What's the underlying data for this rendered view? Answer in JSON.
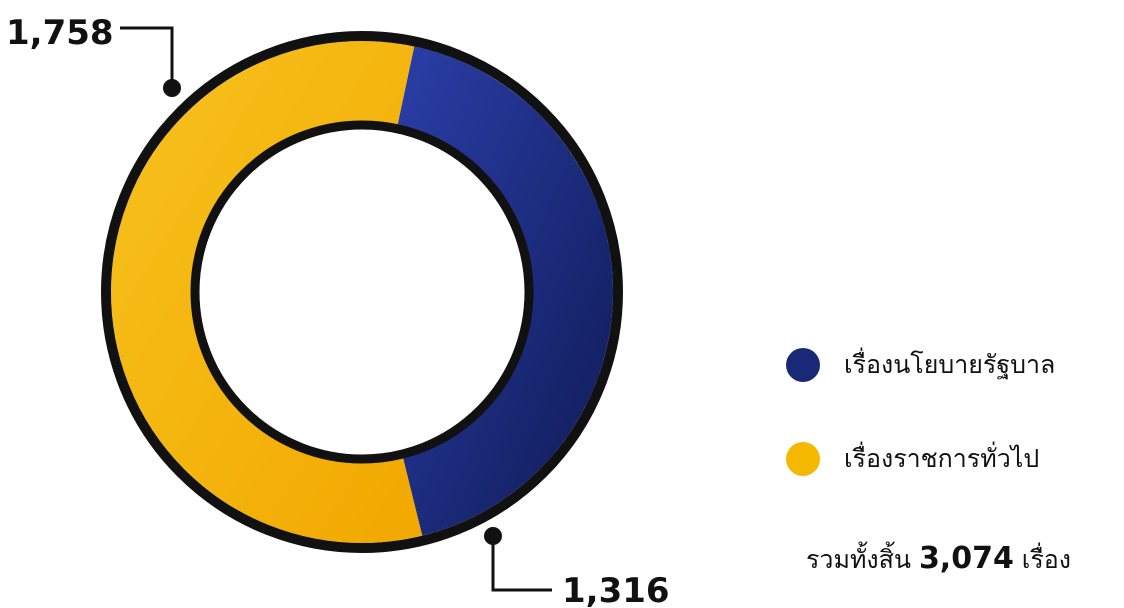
{
  "chart_data": {
    "type": "pie",
    "donut": true,
    "categories": [
      "เรื่องนโยบายรัฐบาล",
      "เรื่องราชการทั่วไป"
    ],
    "values": [
      1316,
      1758
    ],
    "value_labels": [
      "1,316",
      "1,758"
    ],
    "colors": [
      "#1a2878",
      "#f5b800"
    ],
    "legend_position": "right"
  },
  "legend": {
    "items": [
      {
        "label": "เรื่องนโยบายรัฐบาล",
        "color": "#1a2878"
      },
      {
        "label": "เรื่องราชการทั่วไป",
        "color": "#f5b800"
      }
    ]
  },
  "total": {
    "prefix": "รวมทั้งสิ้น",
    "value": "3,074",
    "suffix": "เรื่อง"
  }
}
